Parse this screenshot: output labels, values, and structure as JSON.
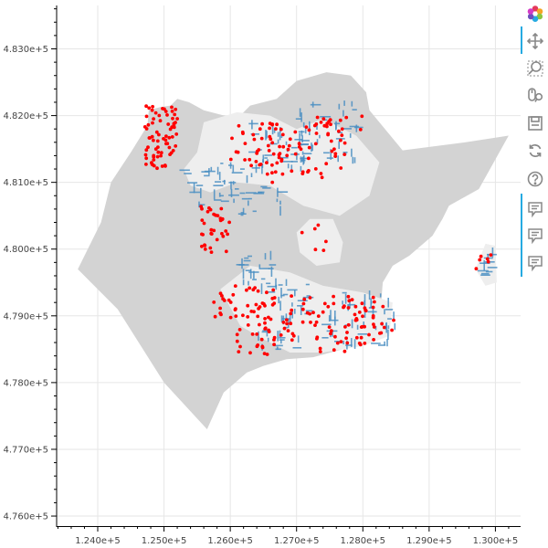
{
  "chart_data": {
    "type": "scatter",
    "title": "",
    "xlabel": "",
    "ylabel": "",
    "xlim": [
      123380,
      130380
    ],
    "ylim": [
      475850,
      483650
    ],
    "x_ticks": [
      124000,
      125000,
      126000,
      127000,
      128000,
      129000,
      130000
    ],
    "x_tick_labels": [
      "1.240e+5",
      "1.250e+5",
      "1.260e+5",
      "1.270e+5",
      "1.280e+5",
      "1.290e+5",
      "1.300e+5"
    ],
    "y_ticks": [
      476000,
      477000,
      478000,
      479000,
      480000,
      481000,
      482000,
      483000
    ],
    "y_tick_labels": [
      "4.760e+5",
      "4.770e+5",
      "4.780e+5",
      "4.790e+5",
      "4.800e+5",
      "4.810e+5",
      "4.820e+5",
      "4.830e+5"
    ],
    "grid": true,
    "colors": {
      "region_outer": "#d3d3d3",
      "region_inner": "#eeeeee",
      "buildings": "#4a8ec2",
      "points": "#ff0000",
      "grid": "#e6e6e6",
      "axis": "#000000"
    },
    "layers": [
      {
        "kind": "polygon",
        "fill": "#d3d3d3",
        "coords": [
          [
            124950,
            482130
          ],
          [
            125100,
            482150
          ],
          [
            125200,
            482250
          ],
          [
            125380,
            482200
          ],
          [
            125600,
            482080
          ],
          [
            126100,
            481950
          ],
          [
            126300,
            482150
          ],
          [
            126700,
            482250
          ],
          [
            127000,
            482520
          ],
          [
            127450,
            482650
          ],
          [
            127820,
            482600
          ],
          [
            128050,
            482350
          ],
          [
            128100,
            482080
          ],
          [
            128600,
            481480
          ],
          [
            129550,
            481600
          ],
          [
            130200,
            481700
          ],
          [
            129750,
            480900
          ],
          [
            129300,
            480650
          ],
          [
            129200,
            480450
          ],
          [
            129050,
            480200
          ],
          [
            128700,
            479900
          ],
          [
            128450,
            479750
          ],
          [
            128300,
            479500
          ],
          [
            128280,
            479250
          ],
          [
            128200,
            478900
          ],
          [
            128000,
            478650
          ],
          [
            127700,
            478500
          ],
          [
            127250,
            478380
          ],
          [
            126850,
            478350
          ],
          [
            126500,
            478250
          ],
          [
            126250,
            478150
          ],
          [
            125900,
            477850
          ],
          [
            125650,
            477300
          ],
          [
            125000,
            478000
          ],
          [
            124300,
            479100
          ],
          [
            123700,
            479700
          ],
          [
            124050,
            480400
          ],
          [
            124200,
            481000
          ],
          [
            124500,
            481450
          ],
          [
            124750,
            481850
          ],
          [
            124770,
            482080
          ]
        ]
      },
      {
        "kind": "polygon",
        "fill": "#eeeeee",
        "coords": [
          [
            125300,
            481200
          ],
          [
            125500,
            481450
          ],
          [
            125600,
            481900
          ],
          [
            126100,
            482050
          ],
          [
            126600,
            482000
          ],
          [
            127000,
            481800
          ],
          [
            127400,
            481950
          ],
          [
            127900,
            481700
          ],
          [
            128250,
            481300
          ],
          [
            128100,
            480800
          ],
          [
            127650,
            480500
          ],
          [
            127100,
            480650
          ],
          [
            126600,
            480950
          ],
          [
            126100,
            481000
          ],
          [
            125700,
            480850
          ],
          [
            125400,
            480950
          ]
        ]
      },
      {
        "kind": "polygon",
        "fill": "#eeeeee",
        "coords": [
          [
            125850,
            479400
          ],
          [
            126300,
            479750
          ],
          [
            126900,
            479650
          ],
          [
            127400,
            479450
          ],
          [
            128000,
            479350
          ],
          [
            128450,
            479200
          ],
          [
            128400,
            478700
          ],
          [
            128000,
            478550
          ],
          [
            127400,
            478450
          ],
          [
            126900,
            478450
          ],
          [
            126500,
            478650
          ],
          [
            126150,
            478850
          ]
        ]
      },
      {
        "kind": "polygon",
        "fill": "#eeeeee",
        "coords": [
          [
            127200,
            480450
          ],
          [
            127550,
            480450
          ],
          [
            127700,
            480100
          ],
          [
            127650,
            479800
          ],
          [
            127300,
            479750
          ],
          [
            127050,
            479950
          ],
          [
            127000,
            480250
          ]
        ]
      },
      {
        "kind": "polygon",
        "fill": "#eeeeee",
        "coords": [
          [
            129850,
            480080
          ],
          [
            130000,
            480050
          ],
          [
            130020,
            479500
          ],
          [
            129850,
            479450
          ],
          [
            129700,
            479700
          ]
        ]
      },
      {
        "kind": "buildings",
        "color": "#4a8ec2",
        "clusters": [
          {
            "x": [
              125800,
              126550
            ],
            "y": [
              480700,
              481400
            ],
            "n": 34
          },
          {
            "x": [
              126300,
              127200
            ],
            "y": [
              481200,
              481900
            ],
            "n": 40
          },
          {
            "x": [
              127000,
              127950
            ],
            "y": [
              481300,
              482200
            ],
            "n": 48
          },
          {
            "x": [
              126150,
              126650
            ],
            "y": [
              479300,
              479950
            ],
            "n": 26
          },
          {
            "x": [
              126650,
              127200
            ],
            "y": [
              478950,
              479550
            ],
            "n": 26
          },
          {
            "x": [
              127300,
              128500
            ],
            "y": [
              478550,
              479350
            ],
            "n": 56
          },
          {
            "x": [
              126400,
              127050
            ],
            "y": [
              478500,
              478950
            ],
            "n": 20
          },
          {
            "x": [
              125300,
              125850
            ],
            "y": [
              480650,
              481200
            ],
            "n": 18
          },
          {
            "x": [
              126000,
              126800
            ],
            "y": [
              480500,
              480900
            ],
            "n": 14
          },
          {
            "x": [
              129750,
              130000
            ],
            "y": [
              479600,
              480000
            ],
            "n": 12
          }
        ]
      },
      {
        "kind": "points",
        "color": "#ff0000",
        "clusters": [
          {
            "x": [
              124700,
              125200
            ],
            "y": [
              481200,
              482150
            ],
            "n": 72
          },
          {
            "x": [
              125550,
              126000
            ],
            "y": [
              479950,
              480700
            ],
            "n": 34
          },
          {
            "x": [
              126000,
              126800
            ],
            "y": [
              481250,
              481900
            ],
            "n": 38
          },
          {
            "x": [
              126550,
              127750
            ],
            "y": [
              481000,
              481900
            ],
            "n": 52
          },
          {
            "x": [
              125750,
              126700
            ],
            "y": [
              478950,
              479450
            ],
            "n": 38
          },
          {
            "x": [
              126100,
              126900
            ],
            "y": [
              478400,
              479100
            ],
            "n": 34
          },
          {
            "x": [
              126800,
              128200
            ],
            "y": [
              478450,
              479300
            ],
            "n": 70
          },
          {
            "x": [
              127900,
              128500
            ],
            "y": [
              478700,
              479200
            ],
            "n": 14
          },
          {
            "x": [
              127300,
              128000
            ],
            "y": [
              481600,
              482000
            ],
            "n": 14
          },
          {
            "x": [
              127000,
              127800
            ],
            "y": [
              479900,
              480400
            ],
            "n": 6
          },
          {
            "x": [
              129700,
              129950
            ],
            "y": [
              479700,
              480000
            ],
            "n": 6
          }
        ]
      }
    ]
  },
  "toolbar": {
    "tools": [
      {
        "icon": "bokeh-logo-icon",
        "name": "bokeh-logo",
        "active": false
      },
      {
        "icon": "pan-icon",
        "name": "pan-tool-button",
        "active": true
      },
      {
        "icon": "zoom-in-icon",
        "name": "box-zoom-tool-button",
        "active": false
      },
      {
        "icon": "wheel-zoom-icon",
        "name": "wheel-zoom-tool-button",
        "active": false
      },
      {
        "icon": "save-icon",
        "name": "save-tool-button",
        "active": false
      },
      {
        "icon": "reset-icon",
        "name": "reset-tool-button",
        "active": false
      },
      {
        "icon": "help-icon",
        "name": "help-tool-button",
        "active": false
      },
      {
        "icon": "hover-icon",
        "name": "hover-tool-button-1",
        "active": true
      },
      {
        "icon": "hover-icon",
        "name": "hover-tool-button-2",
        "active": true
      },
      {
        "icon": "hover-icon",
        "name": "hover-tool-button-3",
        "active": true
      }
    ]
  }
}
